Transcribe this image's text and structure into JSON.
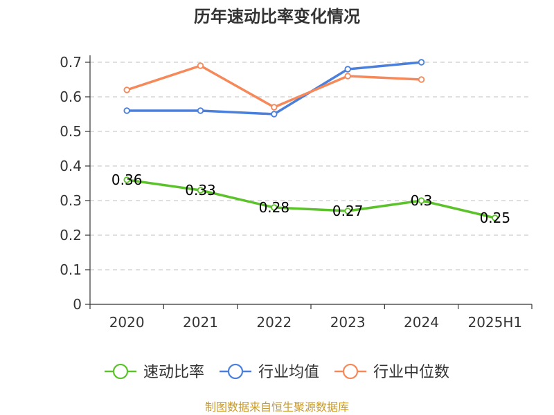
{
  "chart_data": {
    "type": "line",
    "title": "历年速动比率变化情况",
    "categories": [
      "2020",
      "2021",
      "2022",
      "2023",
      "2024",
      "2025H1"
    ],
    "ylim": [
      0,
      0.7
    ],
    "yticks": [
      0,
      0.1,
      0.2,
      0.3,
      0.4,
      0.5,
      0.6,
      0.7
    ],
    "ytick_labels": [
      "0",
      "0.1",
      "0.2",
      "0.3",
      "0.4",
      "0.5",
      "0.6",
      "0.7"
    ],
    "grid": true,
    "legend_position": "bottom",
    "series": [
      {
        "name": "速动比率",
        "color": "#5cc22b",
        "values": [
          0.36,
          0.33,
          0.28,
          0.27,
          0.3,
          0.25
        ],
        "labels": [
          "0.36",
          "0.33",
          "0.28",
          "0.27",
          "0.3",
          "0.25"
        ],
        "show_labels": true
      },
      {
        "name": "行业均值",
        "color": "#4a7fdb",
        "values": [
          0.56,
          0.56,
          0.55,
          0.68,
          0.7,
          null
        ],
        "show_labels": false
      },
      {
        "name": "行业中位数",
        "color": "#f5895a",
        "values": [
          0.62,
          0.69,
          0.57,
          0.66,
          0.65,
          null
        ],
        "show_labels": false
      }
    ],
    "source_text": "制图数据来自恒生聚源数据库"
  }
}
